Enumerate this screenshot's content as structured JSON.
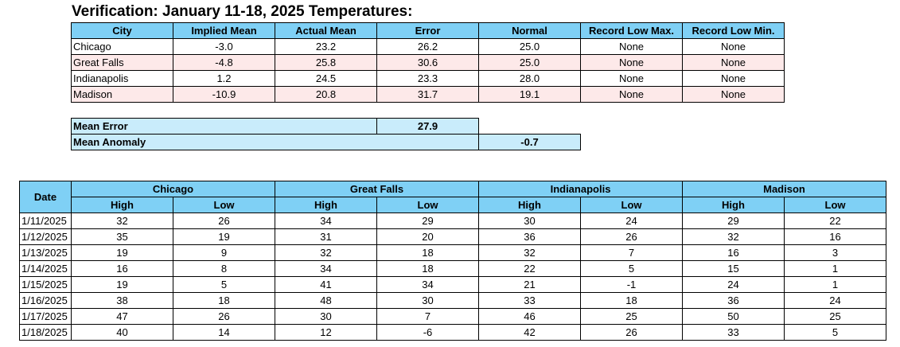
{
  "title": "Verification: January 11-18, 2025 Temperatures:",
  "verification": {
    "headers": [
      "City",
      "Implied Mean",
      "Actual Mean",
      "Error",
      "Normal",
      "Record Low Max.",
      "Record Low Min."
    ],
    "rows": [
      [
        "Chicago",
        "-3.0",
        "23.2",
        "26.2",
        "25.0",
        "None",
        "None"
      ],
      [
        "Great Falls",
        "-4.8",
        "25.8",
        "30.6",
        "25.0",
        "None",
        "None"
      ],
      [
        "Indianapolis",
        "1.2",
        "24.5",
        "23.3",
        "28.0",
        "None",
        "None"
      ],
      [
        "Madison",
        "-10.9",
        "20.8",
        "31.7",
        "19.1",
        "None",
        "None"
      ]
    ]
  },
  "summary": {
    "mean_error_label": "Mean Error",
    "mean_error_value": "27.9",
    "mean_anomaly_label": "Mean Anomaly",
    "mean_anomaly_value": "-0.7"
  },
  "observations": {
    "date_label": "Date",
    "cities": [
      "Chicago",
      "Great Falls",
      "Indianapolis",
      "Madison"
    ],
    "high_label": "High",
    "low_label": "Low",
    "rows": [
      [
        "1/11/2025",
        "32",
        "26",
        "34",
        "29",
        "30",
        "24",
        "29",
        "22"
      ],
      [
        "1/12/2025",
        "35",
        "19",
        "31",
        "20",
        "36",
        "26",
        "32",
        "16"
      ],
      [
        "1/13/2025",
        "19",
        "9",
        "32",
        "18",
        "32",
        "7",
        "16",
        "3"
      ],
      [
        "1/14/2025",
        "16",
        "8",
        "34",
        "18",
        "22",
        "5",
        "15",
        "1"
      ],
      [
        "1/15/2025",
        "19",
        "5",
        "41",
        "34",
        "21",
        "-1",
        "24",
        "1"
      ],
      [
        "1/16/2025",
        "38",
        "18",
        "48",
        "30",
        "33",
        "18",
        "36",
        "24"
      ],
      [
        "1/17/2025",
        "47",
        "26",
        "30",
        "7",
        "46",
        "25",
        "50",
        "25"
      ],
      [
        "1/18/2025",
        "40",
        "14",
        "12",
        "-6",
        "42",
        "26",
        "33",
        "5"
      ]
    ]
  }
}
